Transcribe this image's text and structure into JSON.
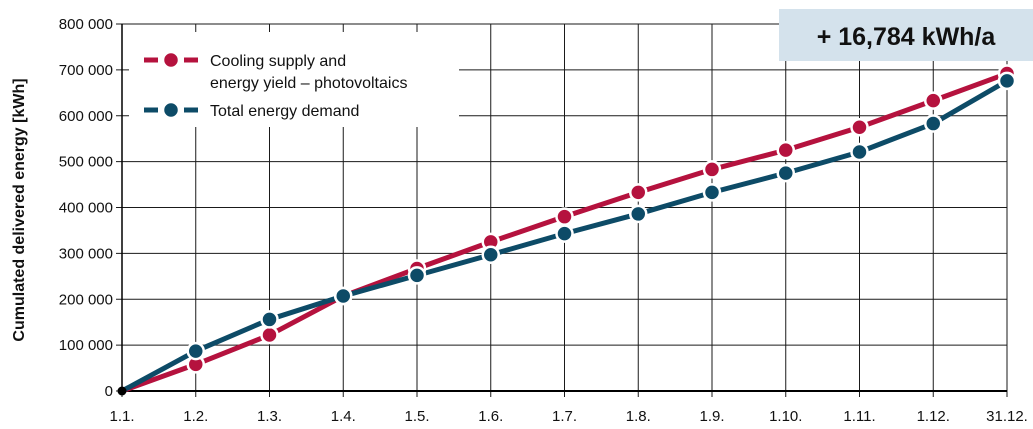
{
  "chart_data": {
    "type": "line",
    "ylabel": "Cumulated delivered energy [kWh]",
    "xlabel": "",
    "categories": [
      "1.1.",
      "1.2.",
      "1.3.",
      "1.4.",
      "1.5.",
      "1.6.",
      "1.7.",
      "1.8.",
      "1.9.",
      "1.10.",
      "1.11.",
      "1.12.",
      "31.12."
    ],
    "ylim": [
      0,
      800000
    ],
    "yticks": [
      0,
      100000,
      200000,
      300000,
      400000,
      500000,
      600000,
      700000,
      800000
    ],
    "ytick_labels": [
      "0",
      "100 000",
      "200 000",
      "300 000",
      "400 000",
      "500 000",
      "600 000",
      "700 000",
      "800 000"
    ],
    "grid": true,
    "legend_position": "top-left",
    "series": [
      {
        "name_lines": [
          "Cooling supply and",
          "energy yield – photovoltaics"
        ],
        "color": "#b5123e",
        "values": [
          0,
          58000,
          122000,
          207000,
          267000,
          325000,
          380000,
          433000,
          483000,
          525000,
          575000,
          633000,
          692000
        ]
      },
      {
        "name_lines": [
          "Total energy demand"
        ],
        "color": "#0d4b67",
        "values": [
          0,
          87000,
          156000,
          207000,
          252000,
          297000,
          343000,
          386000,
          433000,
          475000,
          521000,
          583000,
          676000
        ]
      }
    ],
    "annotation": {
      "text": "+ 16,784 kWh/a",
      "background": "#d4e2ec"
    }
  }
}
